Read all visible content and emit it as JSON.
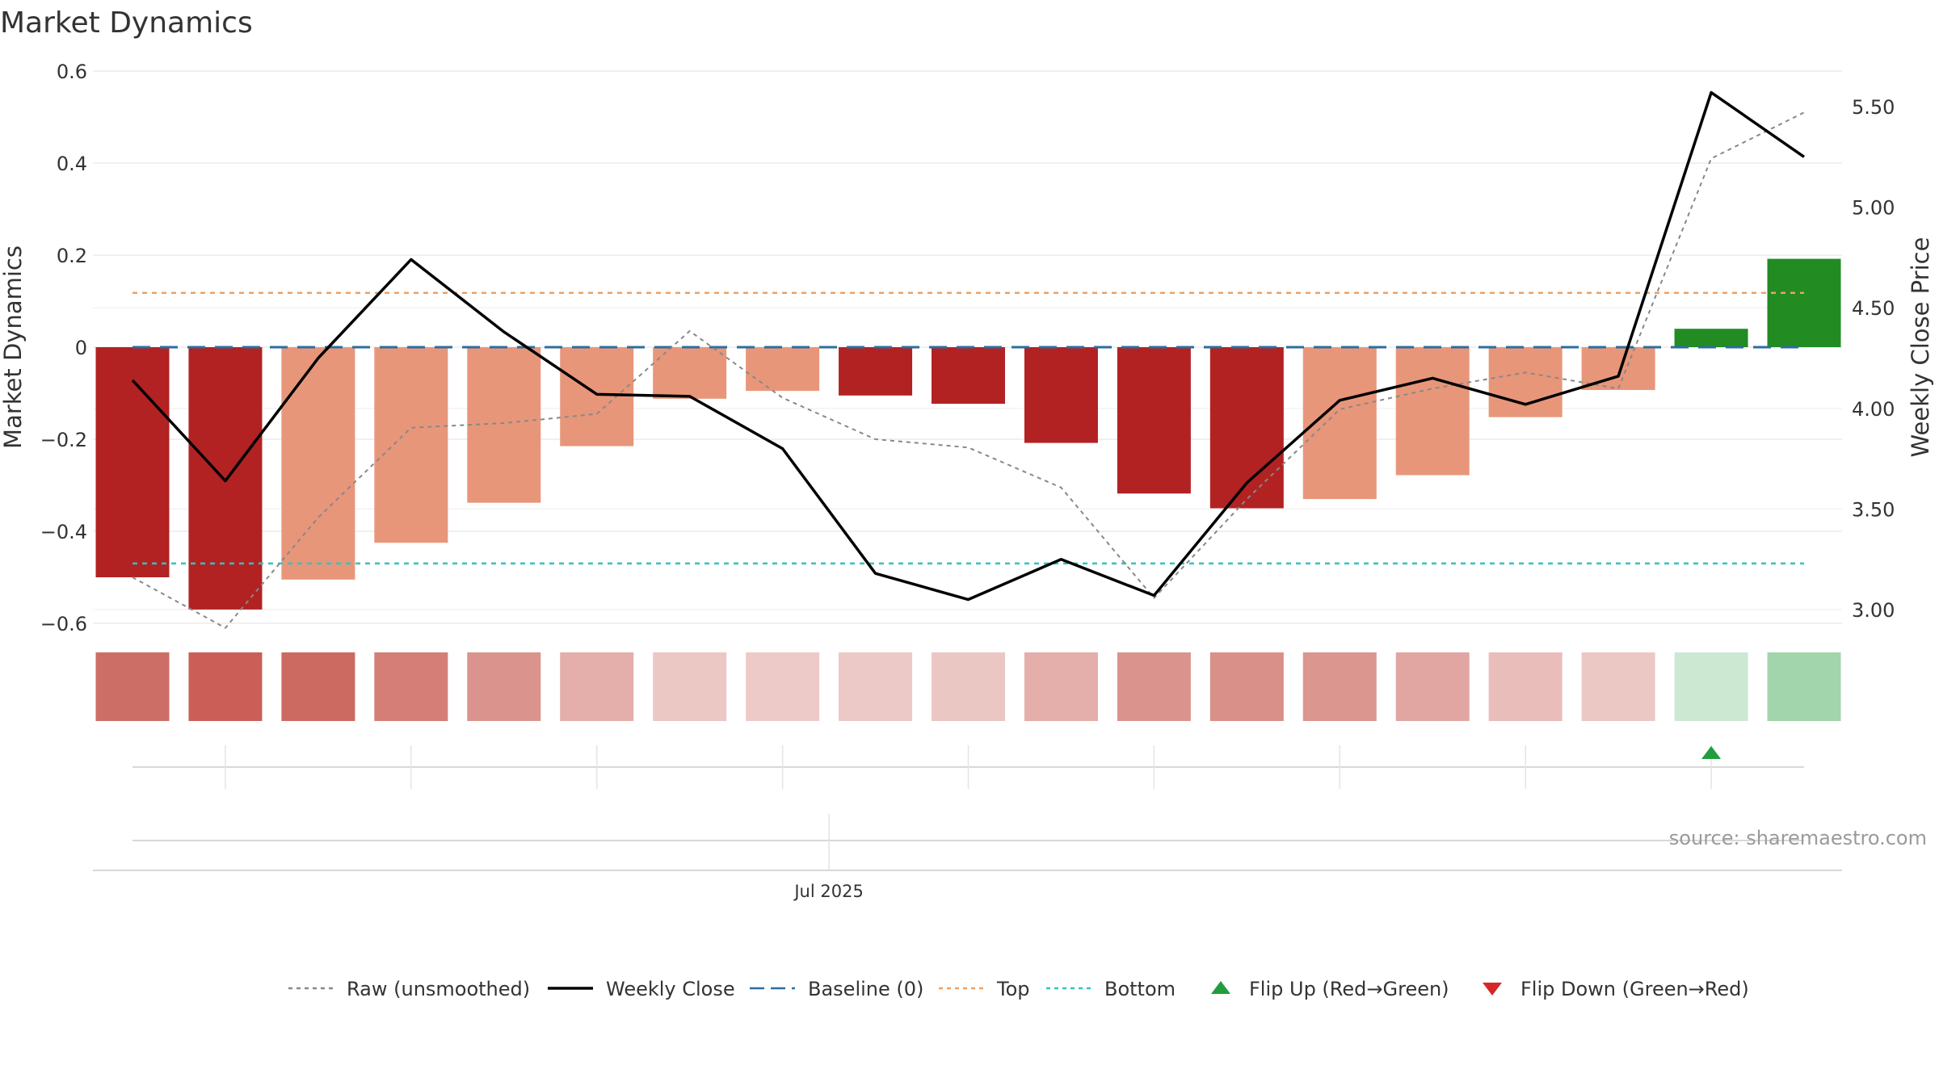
{
  "chart_data": {
    "type": "bar",
    "title": "Market Dynamics",
    "ylabel": "Market Dynamics",
    "y2label": "Weekly Close Price",
    "ylim": [
      -0.62,
      0.6
    ],
    "y_ticks": [
      0.6,
      0.4,
      0.2,
      0,
      -0.2,
      -0.4,
      -0.6
    ],
    "y_tick_labels": [
      "0.6",
      "0.4",
      "0.2",
      "0",
      "−0.2",
      "−0.4",
      "−0.6"
    ],
    "y2lim": [
      2.95,
      5.62
    ],
    "y2_ticks": [
      5.5,
      5.0,
      4.5,
      4.0,
      3.5,
      3.0
    ],
    "y2_tick_labels": [
      "5.50",
      "5.00",
      "4.50",
      "4.00",
      "3.50",
      "3.00"
    ],
    "x_tick_label": "Jul 2025",
    "x_tick_index": 7.5,
    "grid": true,
    "bars": {
      "values": [
        -0.5,
        -0.57,
        -0.505,
        -0.425,
        -0.338,
        -0.215,
        -0.112,
        -0.095,
        -0.105,
        -0.123,
        -0.208,
        -0.318,
        -0.35,
        -0.33,
        -0.278,
        -0.152,
        -0.093,
        0.04,
        0.192
      ],
      "colors": [
        "#b22222",
        "#b22222",
        "#e8967a",
        "#e8967a",
        "#e8967a",
        "#e8967a",
        "#e8967a",
        "#e8967a",
        "#b22222",
        "#b22222",
        "#b22222",
        "#b22222",
        "#b22222",
        "#e8967a",
        "#e8967a",
        "#e8967a",
        "#e8967a",
        "#228b22",
        "#228b22"
      ]
    },
    "heat_strip_colors": [
      "#cd6e66",
      "#cb5f58",
      "#cc6a62",
      "#d47e77",
      "#da948d",
      "#e4aeaa",
      "#ecc8c5",
      "#edcac7",
      "#ecc9c6",
      "#ebc7c4",
      "#e4aeaa",
      "#da948d",
      "#d89089",
      "#db9690",
      "#e1a6a2",
      "#e9bdb9",
      "#ecc8c5",
      "#cde8d2",
      "#a2d5ab"
    ],
    "series": [
      {
        "name": "Raw (unsmoothed)",
        "axis": "left",
        "values": [
          -0.5,
          -0.61,
          -0.37,
          -0.175,
          -0.165,
          -0.145,
          0.035,
          -0.11,
          -0.2,
          -0.218,
          -0.305,
          -0.545,
          -0.33,
          -0.135,
          -0.09,
          -0.055,
          -0.09,
          0.41,
          0.51
        ],
        "color": "#888888",
        "style": "dotted"
      },
      {
        "name": "Weekly Close",
        "axis": "right",
        "values": [
          4.14,
          3.64,
          4.25,
          4.74,
          4.38,
          4.07,
          4.06,
          3.8,
          3.18,
          3.05,
          3.25,
          3.07,
          3.63,
          4.04,
          4.15,
          4.02,
          4.16,
          5.57,
          5.25
        ],
        "color": "#000000",
        "style": "solid"
      },
      {
        "name": "Baseline (0)",
        "axis": "left",
        "value": 0,
        "color": "#2c6e9e",
        "style": "dashed"
      },
      {
        "name": "Top",
        "axis": "left",
        "value": 0.118,
        "color": "#f0a060",
        "style": "dotted"
      },
      {
        "name": "Bottom",
        "axis": "left",
        "value": -0.47,
        "color": "#2ec4c4",
        "style": "dotted"
      }
    ],
    "markers": {
      "flip_up_index": [
        17
      ],
      "flip_down_index": []
    },
    "legend": [
      {
        "label": "Raw (unsmoothed)",
        "kind": "dotted",
        "color": "#888888"
      },
      {
        "label": "Weekly Close",
        "kind": "solid",
        "color": "#000000"
      },
      {
        "label": "Baseline (0)",
        "kind": "dashed",
        "color": "#2c6e9e"
      },
      {
        "label": "Top",
        "kind": "dotted",
        "color": "#f0a060"
      },
      {
        "label": "Bottom",
        "kind": "dotted",
        "color": "#2ec4c4"
      },
      {
        "label": "Flip Up (Red→Green)",
        "kind": "triangle-up",
        "color": "#1f9e3e"
      },
      {
        "label": "Flip Down (Green→Red)",
        "kind": "triangle-down",
        "color": "#d62728"
      }
    ],
    "legend_position": "bottom",
    "source": "source: sharemaestro.com"
  }
}
